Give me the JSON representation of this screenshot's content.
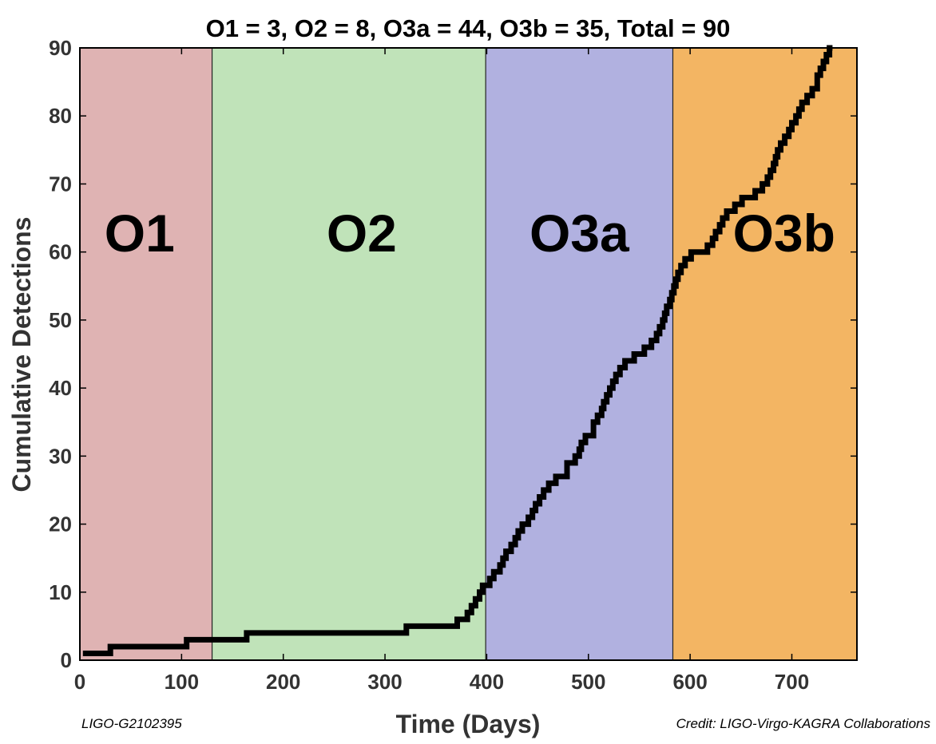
{
  "chart_data": {
    "type": "line",
    "title": "O1 = 3, O2 = 8, O3a = 44, O3b = 35, Total = 90",
    "xlabel": "Time (Days)",
    "ylabel": "Cumulative Detections",
    "xlim": [
      0,
      764
    ],
    "ylim": [
      0,
      90
    ],
    "x_ticks": [
      0,
      100,
      200,
      300,
      400,
      500,
      600,
      700
    ],
    "y_ticks": [
      0,
      10,
      20,
      30,
      40,
      50,
      60,
      70,
      80,
      90
    ],
    "grid": false,
    "legend": "none",
    "runs": [
      {
        "label": "O1",
        "start": 0,
        "end": 130,
        "color": "#dfb3b3"
      },
      {
        "label": "O2",
        "start": 130,
        "end": 399,
        "color": "#c0e3b9"
      },
      {
        "label": "O3a",
        "start": 399,
        "end": 583,
        "color": "#b1b1e0"
      },
      {
        "label": "O3b",
        "start": 583,
        "end": 764,
        "color": "#f3b563"
      }
    ],
    "series": [
      {
        "color": "#000000",
        "step_x": [
          3,
          30,
          105,
          164,
          321,
          371,
          381,
          385,
          389,
          393,
          396,
          403,
          407,
          413,
          416,
          419,
          424,
          428,
          431,
          435,
          441,
          445,
          448,
          452,
          456,
          461,
          468,
          479,
          487,
          491,
          493,
          497,
          505,
          509,
          513,
          515,
          518,
          521,
          524,
          527,
          531,
          536,
          545,
          555,
          562,
          567,
          570,
          573,
          575,
          577,
          580,
          582,
          584,
          586,
          588,
          591,
          595,
          601,
          617,
          622,
          625,
          629,
          632,
          636,
          644,
          651,
          664,
          671,
          676,
          679,
          682,
          684,
          686,
          689,
          693,
          697,
          700,
          704,
          707,
          710,
          715,
          720,
          725
        ],
        "step_y": [
          1,
          2,
          3,
          4,
          5,
          6,
          7,
          8,
          9,
          10,
          11,
          12,
          13,
          14,
          15,
          16,
          17,
          18,
          19,
          20,
          21,
          22,
          23,
          24,
          25,
          26,
          27,
          29,
          30,
          31,
          32,
          33,
          35,
          36,
          37,
          38,
          39,
          40,
          41,
          42,
          43,
          44,
          45,
          46,
          47,
          48,
          49,
          50,
          51,
          52,
          53,
          54,
          55,
          56,
          57,
          58,
          59,
          60,
          61,
          62,
          63,
          64,
          65,
          66,
          67,
          68,
          69,
          70,
          71,
          72,
          73,
          74,
          75,
          76,
          77,
          78,
          79,
          80,
          81,
          82,
          83,
          84,
          85
        ],
        "step_x_end": [
          725,
          728,
          731,
          734,
          737,
          740
        ],
        "step_y_end": [
          86,
          87,
          88,
          89,
          90,
          90
        ]
      }
    ]
  },
  "notes": {
    "left": "LIGO-G2102395",
    "right": "Credit: LIGO-Virgo-KAGRA Collaborations"
  }
}
